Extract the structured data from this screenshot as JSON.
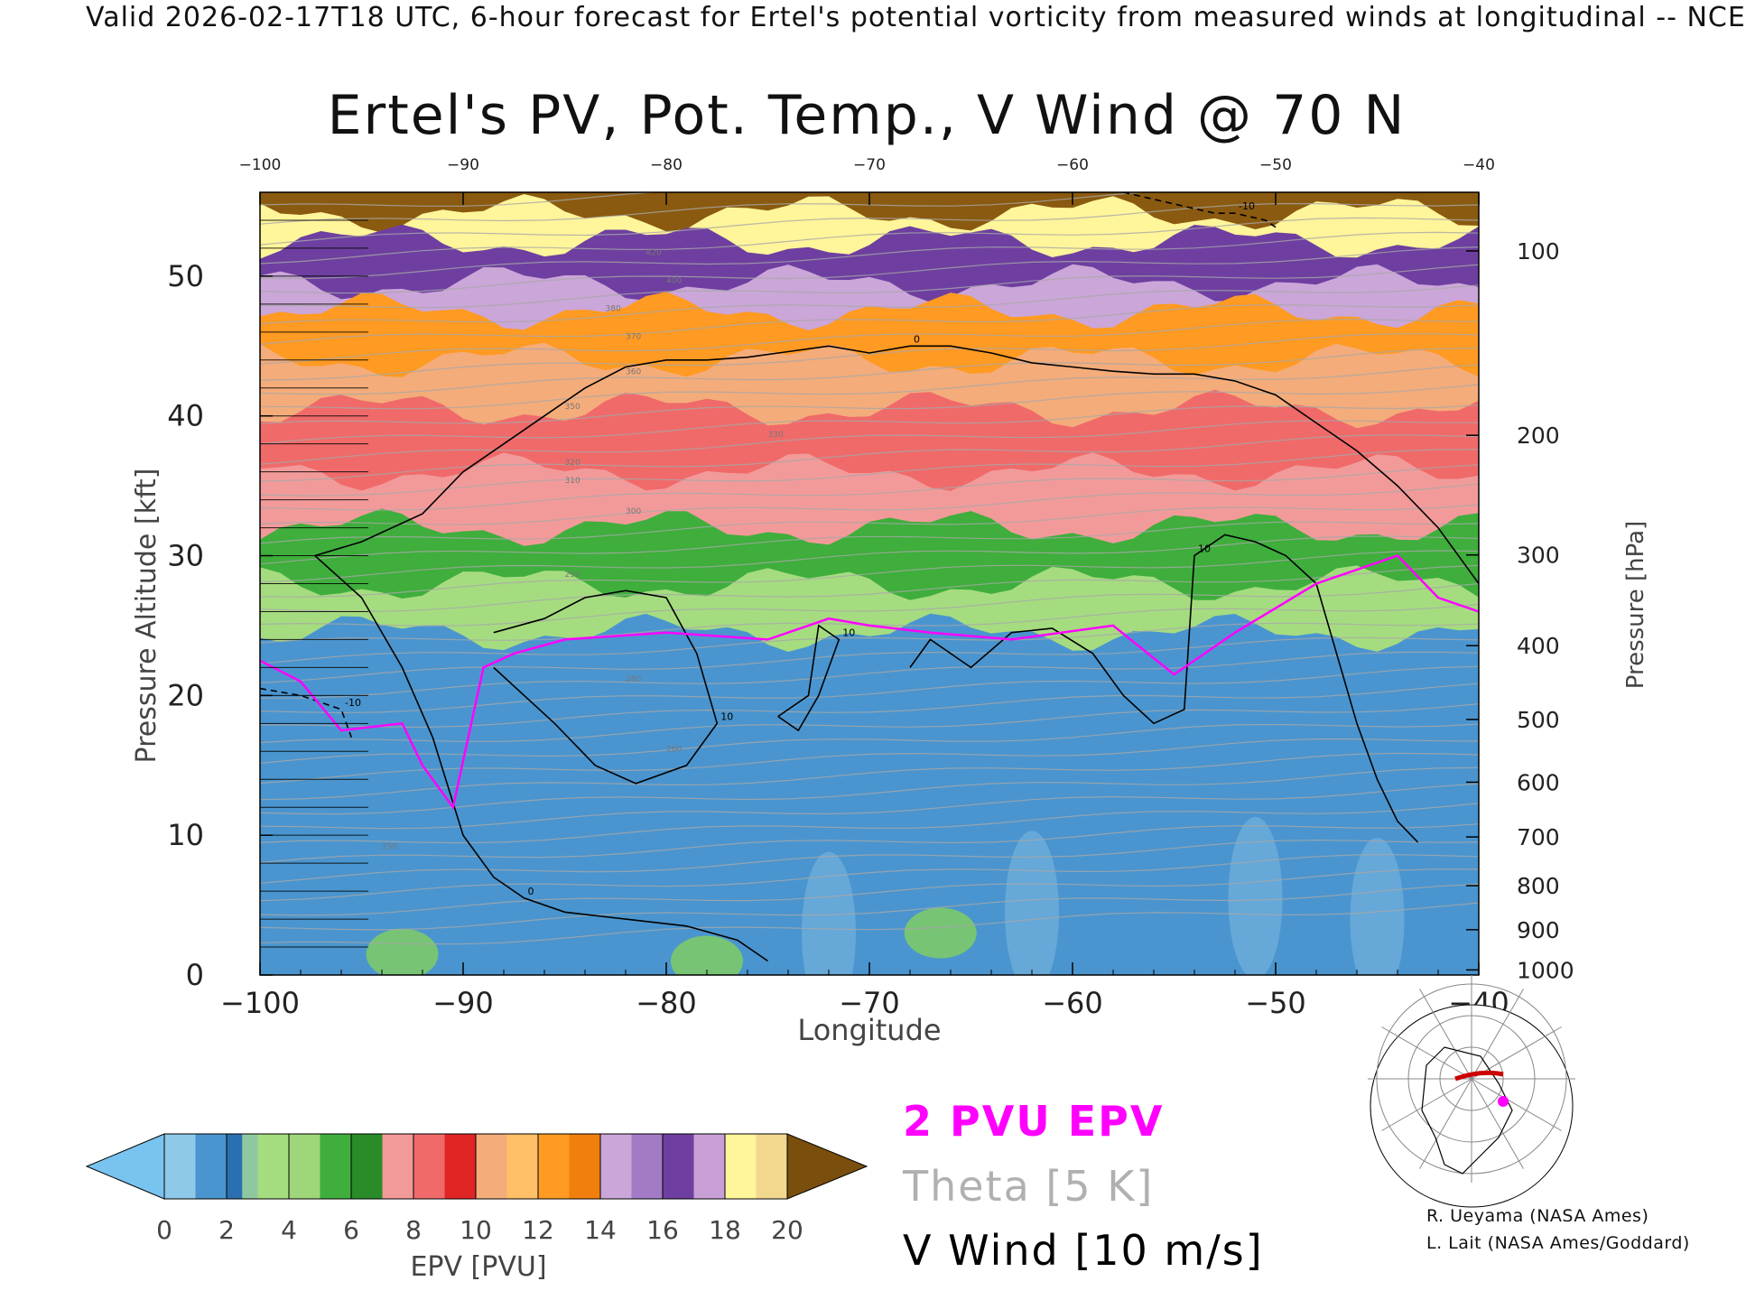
{
  "header": {
    "text": "Valid 2026-02-17T18 UTC, 6-hour forecast for Ertel's potential vorticity from measured winds at longitudinal -- NCE"
  },
  "chart_data": {
    "type": "heatmap",
    "title": "Ertel's PV, Pot. Temp., V Wind @ 70 N",
    "xlabel": "Longitude",
    "ylabel_left": "Pressure Altitude [kft]",
    "ylabel_right": "Pressure [hPa]",
    "xlim": [
      -100,
      -40
    ],
    "ylim": [
      0,
      56
    ],
    "x_ticks": [
      -100,
      -90,
      -80,
      -70,
      -60,
      -50,
      -40
    ],
    "y_ticks_left": [
      0,
      10,
      20,
      30,
      40,
      50
    ],
    "y_ticks_right": [
      1000,
      900,
      800,
      700,
      600,
      500,
      400,
      300,
      200,
      100
    ],
    "grid": false,
    "color_bands_pvu": [
      {
        "top": 56.0,
        "pvu": 20
      },
      {
        "top": 54.5,
        "pvu": 18
      },
      {
        "top": 52.5,
        "pvu": 16
      },
      {
        "top": 49.5,
        "pvu": 14
      },
      {
        "top": 47.5,
        "pvu": 12
      },
      {
        "top": 44.0,
        "pvu": 10
      },
      {
        "top": 40.5,
        "pvu": 8
      },
      {
        "top": 36.0,
        "pvu": 7
      },
      {
        "top": 32.0,
        "pvu": 5
      },
      {
        "top": 28.0,
        "pvu": 3
      },
      {
        "top": 24.5,
        "pvu": 1.5
      },
      {
        "top": 18.0,
        "pvu": 1.2
      }
    ],
    "epv_2pvu_contour": {
      "x": [
        -100,
        -98,
        -96,
        -93,
        -92,
        -90.5,
        -89,
        -87.5,
        -85,
        -80,
        -75,
        -72,
        -70,
        -67,
        -63,
        -58,
        -55,
        -52,
        -48,
        -44,
        -42,
        -40
      ],
      "y": [
        22.5,
        21,
        17.5,
        18,
        15,
        12,
        22,
        23,
        24,
        24.5,
        24,
        25.5,
        25,
        24.5,
        24,
        25,
        21.5,
        24.5,
        28,
        30,
        27,
        26
      ]
    },
    "vwind_contours": [
      {
        "label": "0",
        "x": [
          -97.3,
          -95,
          -92,
          -90,
          -88,
          -86,
          -84,
          -82,
          -80,
          -78,
          -76,
          -74,
          -72,
          -70,
          -68,
          -66,
          -64,
          -62,
          -60,
          -58,
          -56,
          -54,
          -52,
          -50,
          -48,
          -46,
          -44,
          -42,
          -40
        ],
        "y": [
          30,
          31,
          33,
          36,
          38,
          40,
          42,
          43.5,
          44,
          44,
          44.2,
          44.6,
          45,
          44.5,
          45,
          45,
          44.5,
          43.8,
          43.5,
          43.2,
          43,
          43,
          42.5,
          41.5,
          39.5,
          37.5,
          35,
          32,
          28
        ]
      },
      {
        "label": "0",
        "x": [
          -97.3,
          -95,
          -93,
          -91.5,
          -90,
          -88.5,
          -87,
          -85,
          -82,
          -79,
          -76.5,
          -75
        ],
        "y": [
          30,
          27,
          22,
          17,
          10,
          7,
          5.5,
          4.5,
          4,
          3.5,
          2.5,
          1
        ]
      },
      {
        "label": "10",
        "x": [
          -88.5,
          -86,
          -84,
          -82,
          -80,
          -78.5,
          -77.5,
          -79,
          -81.5,
          -83.5,
          -85.5,
          -88.5
        ],
        "y": [
          24.5,
          25.5,
          27,
          27.5,
          27,
          23,
          18,
          15,
          13.7,
          15,
          18,
          22
        ]
      },
      {
        "label": "10",
        "x": [
          -74.5,
          -73,
          -72.5,
          -71.5,
          -72.5,
          -73.5,
          -74.5
        ],
        "y": [
          18.5,
          20,
          25,
          24,
          20,
          17.5,
          18.5
        ]
      },
      {
        "label": "10",
        "x": [
          -68,
          -67,
          -66,
          -65,
          -63,
          -61,
          -59,
          -57.5,
          -56,
          -54.5,
          -54,
          -52.5,
          -51,
          -49.5,
          -48,
          -47,
          -46,
          -45,
          -44,
          -43
        ],
        "y": [
          22,
          24,
          23,
          22,
          24.5,
          24.8,
          23,
          20,
          18,
          19,
          30,
          31.5,
          31,
          30,
          28,
          23,
          18,
          14,
          11,
          9.5
        ]
      },
      {
        "label": "-10",
        "x": [
          -100,
          -98,
          -96,
          -95.5
        ],
        "y": [
          20.5,
          20,
          19,
          17
        ]
      },
      {
        "label": "-10",
        "x": [
          -57.5,
          -54.5,
          -53,
          -52,
          -50.5,
          -50
        ],
        "y": [
          56,
          55,
          54.5,
          54.5,
          54,
          53.5
        ]
      }
    ],
    "theta_labels": [
      "250",
      "260",
      "280",
      "290",
      "300",
      "310",
      "320",
      "330",
      "350",
      "360",
      "370",
      "380",
      "400",
      "420"
    ],
    "colorbar": {
      "label": "EPV [PVU]",
      "ticks": [
        0,
        2,
        4,
        6,
        8,
        10,
        12,
        14,
        16,
        18,
        20
      ],
      "under_color": "#79c3f0",
      "over_color": "#7a4e0c"
    },
    "legend": {
      "epv": "2 PVU EPV",
      "theta": "Theta [5 K]",
      "vwind": "V Wind [10 m/s]",
      "epv_color": "#ff00ff",
      "theta_color": "#b0b0b0",
      "vwind_color": "#000000"
    }
  },
  "credits": {
    "line1": "R. Ueyama (NASA Ames)",
    "line2": "L. Lait (NASA Ames/Goddard)"
  },
  "inset_map": {
    "name": "polar-map",
    "marker_color": "#ff00ff",
    "track_color": "#cc0000"
  }
}
